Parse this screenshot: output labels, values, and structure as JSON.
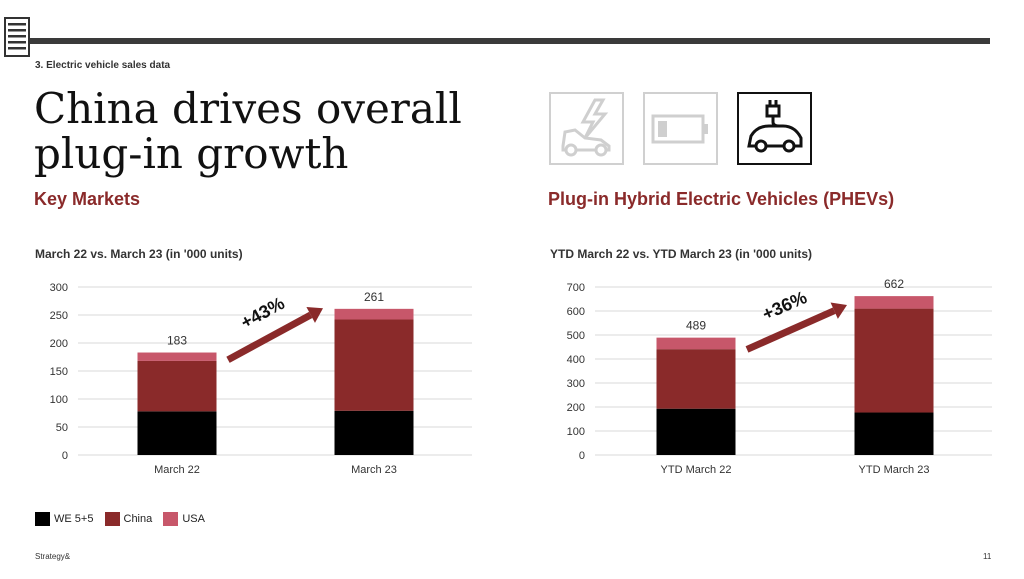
{
  "section_label": "3. Electric vehicle sales data",
  "title_line1": "China drives overall",
  "title_line2": "plug-in growth",
  "subtitle_left": "Key Markets",
  "subtitle_right": "Plug-in Hybrid Electric Vehicles (PHEVs)",
  "icons": [
    "ev-charging-car-icon",
    "battery-icon",
    "plug-car-icon"
  ],
  "colors": {
    "we": "#000000",
    "china": "#8a2a2a",
    "usa": "#c7576a",
    "arrow": "#8a2a2a",
    "accent": "#8a2a2a"
  },
  "legend": [
    "WE 5+5",
    "China",
    "USA"
  ],
  "footer_brand": "Strategy&",
  "page_number": "11",
  "chart_data": [
    {
      "type": "bar",
      "stacked": true,
      "title": "March 22 vs. March 23 (in '000 units)",
      "categories": [
        "March 22",
        "March 23"
      ],
      "series": [
        {
          "name": "WE 5+5",
          "values": [
            78,
            79
          ]
        },
        {
          "name": "China",
          "values": [
            90,
            163
          ]
        },
        {
          "name": "USA",
          "values": [
            15,
            19
          ]
        }
      ],
      "totals": [
        "183",
        "261"
      ],
      "ylim": [
        0,
        300
      ],
      "yticks": [
        0,
        50,
        100,
        150,
        200,
        250,
        300
      ],
      "growth_label": "+43%",
      "grid": true
    },
    {
      "type": "bar",
      "stacked": true,
      "title": "YTD March 22 vs. YTD March 23 (in '000 units)",
      "categories": [
        "YTD March 22",
        "YTD March 23"
      ],
      "series": [
        {
          "name": "WE 5+5",
          "values": [
            193,
            177
          ]
        },
        {
          "name": "China",
          "values": [
            248,
            433
          ]
        },
        {
          "name": "USA",
          "values": [
            48,
            52
          ]
        }
      ],
      "totals": [
        "489",
        "662"
      ],
      "ylim": [
        0,
        700
      ],
      "yticks": [
        0,
        100,
        200,
        300,
        400,
        500,
        600,
        700
      ],
      "growth_label": "+36%",
      "grid": true
    }
  ]
}
